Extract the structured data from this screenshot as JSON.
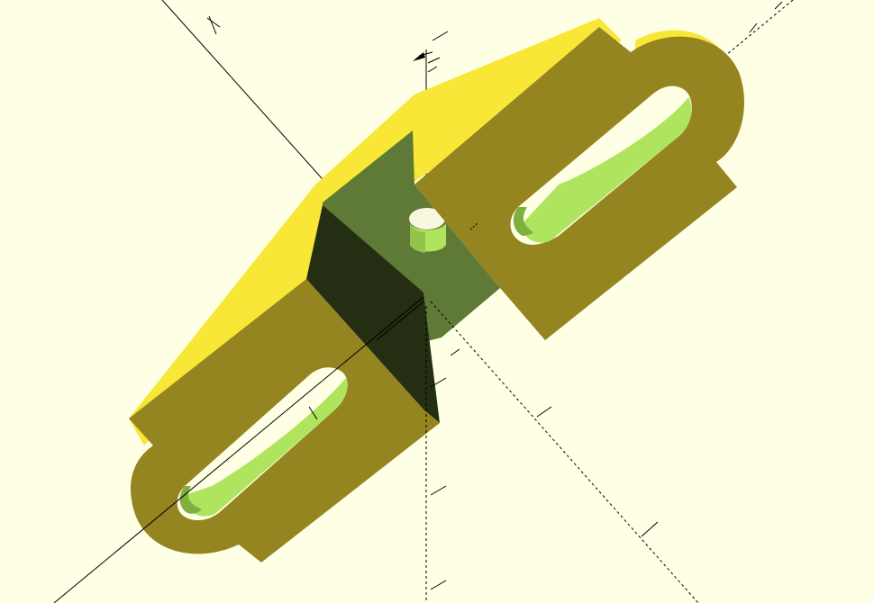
{
  "app": {
    "name": "",
    "view": "3d-preview"
  },
  "colors": {
    "background": "#ffffe5",
    "face_top": "#f8e737",
    "face_front": "#948520",
    "face_green": "#5e7a36",
    "face_dark": "#242e12",
    "face_hole": "#aee45e",
    "axis": "#000000"
  },
  "axes": {
    "show": true,
    "show_scale_ticks": true,
    "dotted_negative": true
  },
  "model": {
    "description_icon": "bracket-model-icon"
  }
}
